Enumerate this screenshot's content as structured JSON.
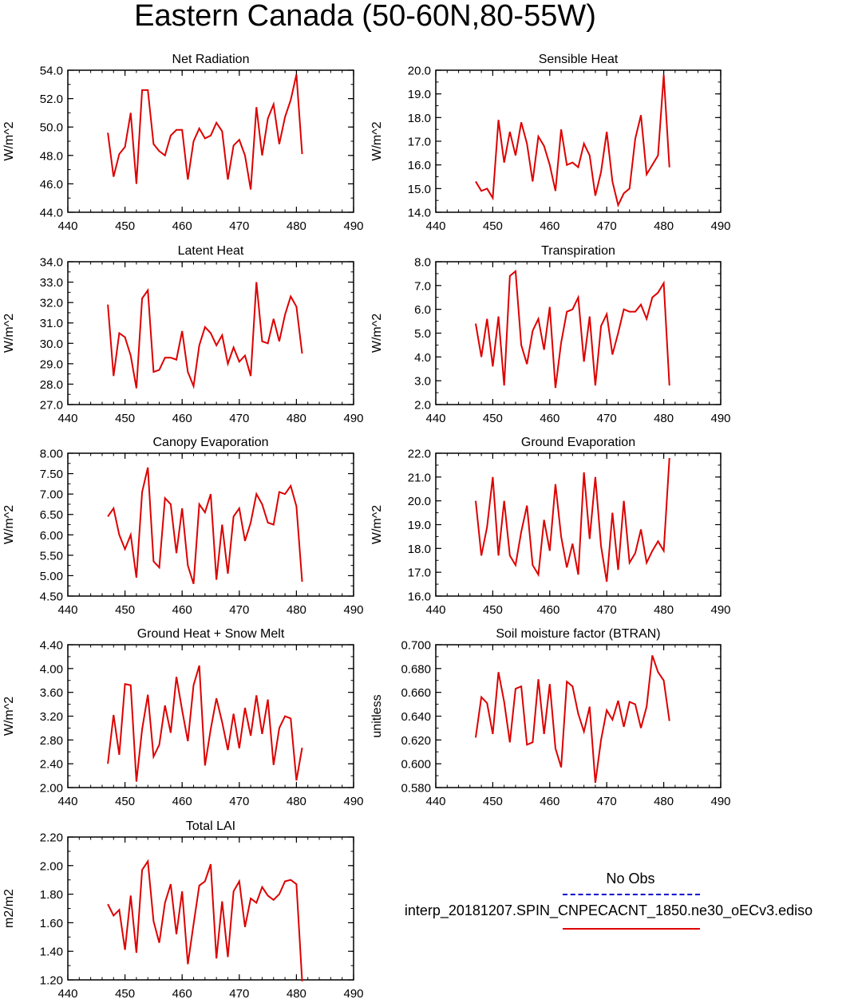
{
  "title": "Eastern Canada (50-60N,80-55W)",
  "legend": {
    "obs_label": "No Obs",
    "obs_color": "#0000cc",
    "model_label": "interp_20181207.SPIN_CNPECACNT_1850.ne30_oECv3.ediso",
    "model_color": "#dd0000"
  },
  "chart_data": [
    {
      "type": "line",
      "title": "Net Radiation",
      "ylabel": "W/m^2",
      "xlim": [
        440,
        490
      ],
      "ylim": [
        44,
        54
      ],
      "xticks": [
        "440",
        "450",
        "460",
        "470",
        "480",
        "490"
      ],
      "yticks": [
        "44.0",
        "46.0",
        "48.0",
        "50.0",
        "52.0",
        "54.0"
      ],
      "x": [
        447,
        448,
        449,
        450,
        451,
        452,
        453,
        454,
        455,
        456,
        457,
        458,
        459,
        460,
        461,
        462,
        463,
        464,
        465,
        466,
        467,
        468,
        469,
        470,
        471,
        472,
        473,
        474,
        475,
        476,
        477,
        478,
        479,
        480,
        481
      ],
      "series": [
        {
          "values": [
            49.6,
            46.5,
            48.1,
            48.6,
            51.0,
            46.0,
            52.6,
            52.6,
            48.8,
            48.3,
            48.0,
            49.4,
            49.8,
            49.8,
            46.3,
            49.0,
            49.9,
            49.2,
            49.4,
            50.3,
            49.7,
            46.3,
            48.7,
            49.1,
            48.0,
            45.6,
            51.4,
            48.0,
            50.6,
            51.6,
            48.8,
            50.7,
            51.9,
            53.7,
            48.1
          ]
        }
      ]
    },
    {
      "type": "line",
      "title": "Sensible Heat",
      "ylabel": "W/m^2",
      "xlim": [
        440,
        490
      ],
      "ylim": [
        14,
        20
      ],
      "xticks": [
        "440",
        "450",
        "460",
        "470",
        "480",
        "490"
      ],
      "yticks": [
        "14.0",
        "15.0",
        "16.0",
        "17.0",
        "18.0",
        "19.0",
        "20.0"
      ],
      "x": [
        447,
        448,
        449,
        450,
        451,
        452,
        453,
        454,
        455,
        456,
        457,
        458,
        459,
        460,
        461,
        462,
        463,
        464,
        465,
        466,
        467,
        468,
        469,
        470,
        471,
        472,
        473,
        474,
        475,
        476,
        477,
        478,
        479,
        480,
        481
      ],
      "series": [
        {
          "values": [
            15.3,
            14.9,
            15.0,
            14.6,
            17.9,
            16.1,
            17.4,
            16.4,
            17.8,
            16.9,
            15.3,
            17.2,
            16.8,
            16.0,
            14.9,
            17.5,
            16.0,
            16.1,
            15.9,
            16.9,
            16.4,
            14.7,
            15.7,
            17.4,
            15.3,
            14.3,
            14.8,
            15.0,
            17.1,
            18.1,
            15.6,
            16.0,
            16.4,
            19.8,
            15.9
          ]
        }
      ]
    },
    {
      "type": "line",
      "title": "Latent Heat",
      "ylabel": "W/m^2",
      "xlim": [
        440,
        490
      ],
      "ylim": [
        27,
        34
      ],
      "xticks": [
        "440",
        "450",
        "460",
        "470",
        "480",
        "490"
      ],
      "yticks": [
        "27.0",
        "28.0",
        "29.0",
        "30.0",
        "31.0",
        "32.0",
        "33.0",
        "34.0"
      ],
      "x": [
        447,
        448,
        449,
        450,
        451,
        452,
        453,
        454,
        455,
        456,
        457,
        458,
        459,
        460,
        461,
        462,
        463,
        464,
        465,
        466,
        467,
        468,
        469,
        470,
        471,
        472,
        473,
        474,
        475,
        476,
        477,
        478,
        479,
        480,
        481
      ],
      "series": [
        {
          "values": [
            31.9,
            28.4,
            30.5,
            30.3,
            29.4,
            27.8,
            32.2,
            32.6,
            28.6,
            28.7,
            29.3,
            29.3,
            29.2,
            30.6,
            28.6,
            27.9,
            29.9,
            30.8,
            30.5,
            29.9,
            30.4,
            29.0,
            29.8,
            29.1,
            29.4,
            28.4,
            33.0,
            30.1,
            30.0,
            31.2,
            30.1,
            31.4,
            32.3,
            31.8,
            29.5
          ]
        }
      ]
    },
    {
      "type": "line",
      "title": "Transpiration",
      "ylabel": "W/m^2",
      "xlim": [
        440,
        490
      ],
      "ylim": [
        2,
        8
      ],
      "xticks": [
        "440",
        "450",
        "460",
        "470",
        "480",
        "490"
      ],
      "yticks": [
        "2.0",
        "3.0",
        "4.0",
        "5.0",
        "6.0",
        "7.0",
        "8.0"
      ],
      "x": [
        447,
        448,
        449,
        450,
        451,
        452,
        453,
        454,
        455,
        456,
        457,
        458,
        459,
        460,
        461,
        462,
        463,
        464,
        465,
        466,
        467,
        468,
        469,
        470,
        471,
        472,
        473,
        474,
        475,
        476,
        477,
        478,
        479,
        480,
        481
      ],
      "series": [
        {
          "values": [
            5.4,
            4.0,
            5.6,
            3.6,
            5.7,
            2.8,
            7.4,
            7.6,
            4.5,
            3.7,
            5.1,
            5.6,
            4.3,
            6.1,
            2.7,
            4.6,
            5.9,
            6.0,
            6.5,
            3.8,
            5.7,
            2.8,
            5.3,
            5.8,
            4.1,
            5.0,
            6.0,
            5.9,
            5.9,
            6.2,
            5.6,
            6.5,
            6.7,
            7.1,
            2.8
          ]
        }
      ]
    },
    {
      "type": "line",
      "title": "Canopy Evaporation",
      "ylabel": "W/m^2",
      "xlim": [
        440,
        490
      ],
      "ylim": [
        4.5,
        8
      ],
      "xticks": [
        "440",
        "450",
        "460",
        "470",
        "480",
        "490"
      ],
      "yticks": [
        "4.50",
        "5.00",
        "5.50",
        "6.00",
        "6.50",
        "7.00",
        "7.50",
        "8.00"
      ],
      "x": [
        447,
        448,
        449,
        450,
        451,
        452,
        453,
        454,
        455,
        456,
        457,
        458,
        459,
        460,
        461,
        462,
        463,
        464,
        465,
        466,
        467,
        468,
        469,
        470,
        471,
        472,
        473,
        474,
        475,
        476,
        477,
        478,
        479,
        480,
        481
      ],
      "series": [
        {
          "values": [
            6.45,
            6.65,
            6.0,
            5.65,
            6.0,
            4.95,
            7.05,
            7.65,
            5.35,
            5.2,
            6.9,
            6.75,
            5.55,
            6.65,
            5.25,
            4.8,
            6.75,
            6.55,
            7.0,
            4.9,
            6.25,
            5.05,
            6.45,
            6.65,
            5.85,
            6.3,
            7.0,
            6.75,
            6.3,
            6.25,
            7.05,
            7.0,
            7.2,
            6.7,
            4.85
          ]
        }
      ]
    },
    {
      "type": "line",
      "title": "Ground Evaporation",
      "ylabel": "W/m^2",
      "xlim": [
        440,
        490
      ],
      "ylim": [
        16,
        22
      ],
      "xticks": [
        "440",
        "450",
        "460",
        "470",
        "480",
        "490"
      ],
      "yticks": [
        "16.0",
        "17.0",
        "18.0",
        "19.0",
        "20.0",
        "21.0",
        "22.0"
      ],
      "x": [
        447,
        448,
        449,
        450,
        451,
        452,
        453,
        454,
        455,
        456,
        457,
        458,
        459,
        460,
        461,
        462,
        463,
        464,
        465,
        466,
        467,
        468,
        469,
        470,
        471,
        472,
        473,
        474,
        475,
        476,
        477,
        478,
        479,
        480,
        481
      ],
      "series": [
        {
          "values": [
            20.0,
            17.7,
            18.9,
            21.0,
            17.7,
            20.0,
            17.7,
            17.3,
            18.7,
            19.8,
            17.3,
            16.9,
            19.2,
            17.9,
            20.7,
            18.5,
            17.2,
            18.2,
            16.9,
            21.2,
            18.4,
            21.0,
            18.1,
            16.6,
            19.5,
            17.1,
            20.0,
            17.4,
            17.8,
            18.8,
            17.4,
            17.9,
            18.3,
            17.9,
            21.8
          ]
        }
      ]
    },
    {
      "type": "line",
      "title": "Ground Heat + Snow Melt",
      "ylabel": "W/m^2",
      "xlim": [
        440,
        490
      ],
      "ylim": [
        2,
        4.4
      ],
      "xticks": [
        "440",
        "450",
        "460",
        "470",
        "480",
        "490"
      ],
      "yticks": [
        "2.00",
        "2.40",
        "2.80",
        "3.20",
        "3.60",
        "4.00",
        "4.40"
      ],
      "x": [
        447,
        448,
        449,
        450,
        451,
        452,
        453,
        454,
        455,
        456,
        457,
        458,
        459,
        460,
        461,
        462,
        463,
        464,
        465,
        466,
        467,
        468,
        469,
        470,
        471,
        472,
        473,
        474,
        475,
        476,
        477,
        478,
        479,
        480,
        481
      ],
      "series": [
        {
          "values": [
            2.4,
            3.22,
            2.55,
            3.74,
            3.72,
            2.1,
            2.98,
            3.56,
            2.52,
            2.72,
            3.38,
            2.92,
            3.86,
            3.3,
            2.78,
            3.72,
            4.05,
            2.37,
            2.98,
            3.5,
            3.1,
            2.63,
            3.24,
            2.66,
            3.34,
            2.87,
            3.55,
            2.9,
            3.48,
            2.38,
            3.0,
            3.2,
            3.16,
            2.12,
            2.67
          ]
        }
      ]
    },
    {
      "type": "line",
      "title": "Soil moisture factor (BTRAN)",
      "ylabel": "unitless",
      "xlim": [
        440,
        490
      ],
      "ylim": [
        0.58,
        0.7
      ],
      "xticks": [
        "440",
        "450",
        "460",
        "470",
        "480",
        "490"
      ],
      "yticks": [
        "0.580",
        "0.600",
        "0.620",
        "0.640",
        "0.660",
        "0.680",
        "0.700"
      ],
      "x": [
        447,
        448,
        449,
        450,
        451,
        452,
        453,
        454,
        455,
        456,
        457,
        458,
        459,
        460,
        461,
        462,
        463,
        464,
        465,
        466,
        467,
        468,
        469,
        470,
        471,
        472,
        473,
        474,
        475,
        476,
        477,
        478,
        479,
        480,
        481
      ],
      "series": [
        {
          "values": [
            0.622,
            0.656,
            0.651,
            0.625,
            0.677,
            0.652,
            0.618,
            0.663,
            0.665,
            0.616,
            0.618,
            0.671,
            0.625,
            0.667,
            0.613,
            0.597,
            0.669,
            0.665,
            0.642,
            0.627,
            0.648,
            0.584,
            0.62,
            0.645,
            0.637,
            0.653,
            0.631,
            0.652,
            0.65,
            0.63,
            0.648,
            0.691,
            0.677,
            0.67,
            0.636
          ]
        }
      ]
    },
    {
      "type": "line",
      "title": "Total LAI",
      "ylabel": "m2/m2",
      "xlim": [
        440,
        490
      ],
      "ylim": [
        1.2,
        2.2
      ],
      "xticks": [
        "440",
        "450",
        "460",
        "470",
        "480",
        "490"
      ],
      "yticks": [
        "1.20",
        "1.40",
        "1.60",
        "1.80",
        "2.00",
        "2.20"
      ],
      "x": [
        447,
        448,
        449,
        450,
        451,
        452,
        453,
        454,
        455,
        456,
        457,
        458,
        459,
        460,
        461,
        462,
        463,
        464,
        465,
        466,
        467,
        468,
        469,
        470,
        471,
        472,
        473,
        474,
        475,
        476,
        477,
        478,
        479,
        480,
        481
      ],
      "series": [
        {
          "values": [
            1.73,
            1.65,
            1.69,
            1.41,
            1.79,
            1.39,
            1.97,
            2.03,
            1.61,
            1.46,
            1.74,
            1.87,
            1.52,
            1.82,
            1.31,
            1.59,
            1.86,
            1.89,
            2.01,
            1.35,
            1.75,
            1.36,
            1.82,
            1.89,
            1.57,
            1.77,
            1.74,
            1.85,
            1.79,
            1.76,
            1.8,
            1.89,
            1.9,
            1.87,
            1.19
          ]
        }
      ]
    }
  ]
}
